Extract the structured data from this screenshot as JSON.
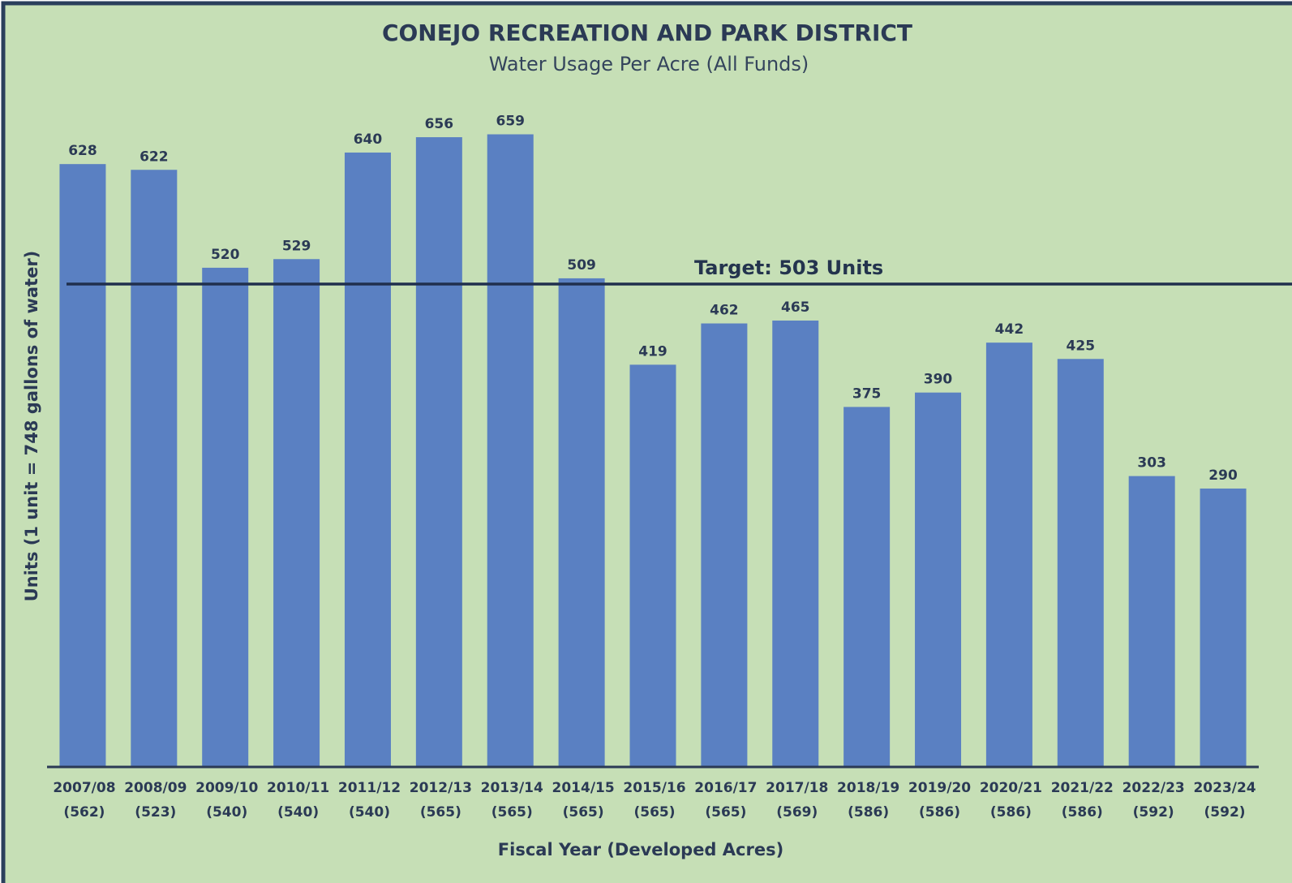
{
  "chart_data": {
    "type": "bar",
    "title": "CONEJO RECREATION AND PARK DISTRICT",
    "subtitle": "Water Usage Per Acre (All Funds)",
    "y_label": "Units (1 unit = 748 gallons of water)",
    "x_label": "Fiscal Year (Developed Acres)",
    "categories": [
      [
        "2007/08",
        "(562)"
      ],
      [
        "2008/09",
        "(523)"
      ],
      [
        "2009/10",
        "(540)"
      ],
      [
        "2010/11",
        "(540)"
      ],
      [
        "2011/12",
        "(540)"
      ],
      [
        "2012/13",
        "(565)"
      ],
      [
        "2013/14",
        "(565)"
      ],
      [
        "2014/15",
        "(565)"
      ],
      [
        "2015/16",
        "(565)"
      ],
      [
        "2016/17",
        "(565)"
      ],
      [
        "2017/18",
        "(569)"
      ],
      [
        "2018/19",
        "(586)"
      ],
      [
        "2019/20",
        "(586)"
      ],
      [
        "2020/21",
        "(586)"
      ],
      [
        "2021/22",
        "(586)"
      ],
      [
        "2022/23",
        "(592)"
      ],
      [
        "2023/24",
        "(592)"
      ]
    ],
    "values": [
      628,
      622,
      520,
      529,
      640,
      656,
      659,
      509,
      419,
      462,
      465,
      375,
      390,
      442,
      425,
      303,
      290
    ],
    "color": "#5a80c2",
    "ylim": [
      0,
      700
    ],
    "target": {
      "value": 503,
      "label": "Target: 503 Units",
      "color": "#1f2f4d"
    }
  }
}
